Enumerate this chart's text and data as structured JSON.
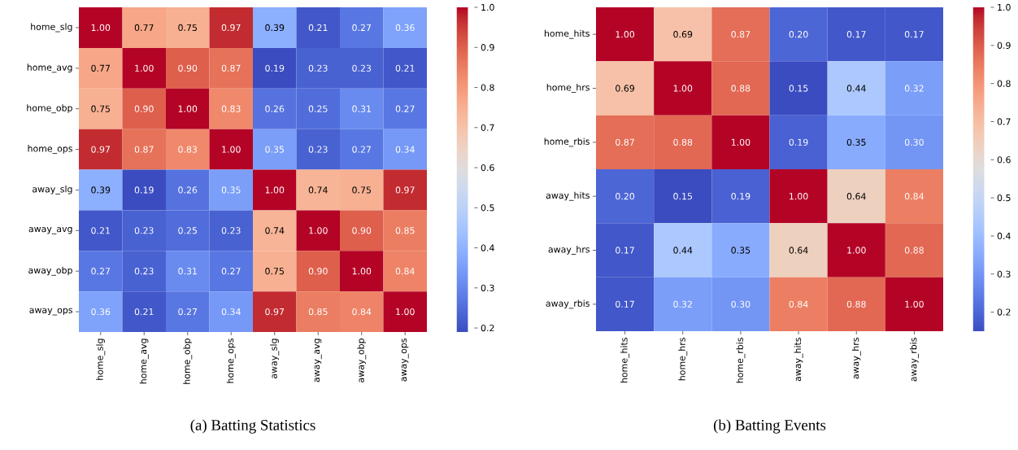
{
  "chart_data": [
    {
      "type": "heatmap",
      "title": "(a) Batting Statistics",
      "categories": [
        "home_slg",
        "home_avg",
        "home_obp",
        "home_ops",
        "away_slg",
        "away_avg",
        "away_obp",
        "away_ops"
      ],
      "y_categories": [
        "home_slg",
        "home_avg",
        "home_obp",
        "home_ops",
        "away_slg",
        "away_avg",
        "away_obp",
        "away_ops"
      ],
      "cells": [
        [
          1.0,
          0.77,
          0.75,
          0.97,
          0.39,
          0.21,
          0.27,
          0.36
        ],
        [
          0.77,
          1.0,
          0.9,
          0.87,
          0.19,
          0.23,
          0.23,
          0.21
        ],
        [
          0.75,
          0.9,
          1.0,
          0.83,
          0.26,
          0.25,
          0.31,
          0.27
        ],
        [
          0.97,
          0.87,
          0.83,
          1.0,
          0.35,
          0.23,
          0.27,
          0.34
        ],
        [
          0.39,
          0.19,
          0.26,
          0.35,
          1.0,
          0.74,
          0.75,
          0.97
        ],
        [
          0.21,
          0.23,
          0.25,
          0.23,
          0.74,
          1.0,
          0.9,
          0.85
        ],
        [
          0.27,
          0.23,
          0.31,
          0.27,
          0.75,
          0.9,
          1.0,
          0.84
        ],
        [
          0.36,
          0.21,
          0.27,
          0.34,
          0.97,
          0.85,
          0.84,
          1.0
        ]
      ],
      "cell_labels": [
        [
          "1.00",
          "0.77",
          "0.75",
          "0.97",
          "0.39",
          "0.21",
          "0.27",
          "0.36"
        ],
        [
          "0.77",
          "1.00",
          "0.90",
          "0.87",
          "0.19",
          "0.23",
          "0.23",
          "0.21"
        ],
        [
          "0.75",
          "0.90",
          "1.00",
          "0.83",
          "0.26",
          "0.25",
          "0.31",
          "0.27"
        ],
        [
          "0.97",
          "0.87",
          "0.83",
          "1.00",
          "0.35",
          "0.23",
          "0.27",
          "0.34"
        ],
        [
          "0.39",
          "0.19",
          "0.26",
          "0.35",
          "1.00",
          "0.74",
          "0.75",
          "0.97"
        ],
        [
          "0.21",
          "0.23",
          "0.25",
          "0.23",
          "0.74",
          "1.00",
          "0.90",
          "0.85"
        ],
        [
          "0.27",
          "0.23",
          "0.31",
          "0.27",
          "0.75",
          "0.90",
          "1.00",
          "0.84"
        ],
        [
          "0.36",
          "0.21",
          "0.27",
          "0.34",
          "0.97",
          "0.85",
          "0.84",
          "1.00"
        ]
      ],
      "clim": [
        0.19,
        1.0
      ],
      "cticks": [
        {
          "value": 0.2,
          "label": "0.2"
        },
        {
          "value": 0.3,
          "label": "0.3"
        },
        {
          "value": 0.4,
          "label": "0.4"
        },
        {
          "value": 0.5,
          "label": "0.5"
        },
        {
          "value": 0.6,
          "label": "0.6"
        },
        {
          "value": 0.7,
          "label": "0.7"
        },
        {
          "value": 0.8,
          "label": "0.8"
        },
        {
          "value": 0.9,
          "label": "0.9"
        },
        {
          "value": 1.0,
          "label": "1.0"
        }
      ]
    },
    {
      "type": "heatmap",
      "title": "(b) Batting Events",
      "categories": [
        "home_hits",
        "home_hrs",
        "home_rbis",
        "away_hits",
        "away_hrs",
        "away_rbis"
      ],
      "y_categories": [
        "home_hits",
        "home_hrs",
        "home_rbis",
        "away_hits",
        "away_hrs",
        "away_rbis"
      ],
      "cells": [
        [
          1.0,
          0.69,
          0.87,
          0.2,
          0.17,
          0.17
        ],
        [
          0.69,
          1.0,
          0.88,
          0.15,
          0.44,
          0.32
        ],
        [
          0.87,
          0.88,
          1.0,
          0.19,
          0.35,
          0.3
        ],
        [
          0.2,
          0.15,
          0.19,
          1.0,
          0.64,
          0.84
        ],
        [
          0.17,
          0.44,
          0.35,
          0.64,
          1.0,
          0.88
        ],
        [
          0.17,
          0.32,
          0.3,
          0.84,
          0.88,
          1.0
        ]
      ],
      "cell_labels": [
        [
          "1.00",
          "0.69",
          "0.87",
          "0.20",
          "0.17",
          "0.17"
        ],
        [
          "0.69",
          "1.00",
          "0.88",
          "0.15",
          "0.44",
          "0.32"
        ],
        [
          "0.87",
          "0.88",
          "1.00",
          "0.19",
          "0.35",
          "0.30"
        ],
        [
          "0.20",
          "0.15",
          "0.19",
          "1.00",
          "0.64",
          "0.84"
        ],
        [
          "0.17",
          "0.44",
          "0.35",
          "0.64",
          "1.00",
          "0.88"
        ],
        [
          "0.17",
          "0.32",
          "0.30",
          "0.84",
          "0.88",
          "1.00"
        ]
      ],
      "clim": [
        0.15,
        1.0
      ],
      "cticks": [
        {
          "value": 0.2,
          "label": "0.2"
        },
        {
          "value": 0.3,
          "label": "0.3"
        },
        {
          "value": 0.4,
          "label": "0.4"
        },
        {
          "value": 0.5,
          "label": "0.5"
        },
        {
          "value": 0.6,
          "label": "0.6"
        },
        {
          "value": 0.7,
          "label": "0.7"
        },
        {
          "value": 0.8,
          "label": "0.8"
        },
        {
          "value": 0.9,
          "label": "0.9"
        },
        {
          "value": 1.0,
          "label": "1.0"
        }
      ]
    }
  ]
}
